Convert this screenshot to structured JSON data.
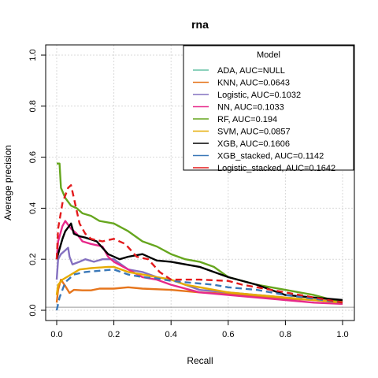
{
  "chart_data": {
    "type": "line",
    "title": "rna",
    "xlabel": "Recall",
    "ylabel": "Average precision",
    "xlim": [
      0,
      1
    ],
    "ylim": [
      0,
      1
    ],
    "x_ticks": [
      "0.0",
      "0.2",
      "0.4",
      "0.6",
      "0.8",
      "1.0"
    ],
    "y_ticks": [
      "0.0",
      "0.2",
      "0.4",
      "0.6",
      "0.8",
      "1.0"
    ],
    "grid": true,
    "baseline": 0.012,
    "legend": {
      "title": "Model",
      "position": "top-right"
    },
    "series": [
      {
        "name": "ADA, AUC=NULL",
        "color": "#66c2a5",
        "dashed": false,
        "points": []
      },
      {
        "name": "KNN, AUC=0.0643",
        "color": "#e6751c",
        "dashed": false,
        "points": [
          [
            0,
            0.03
          ],
          [
            0.005,
            0.08
          ],
          [
            0.015,
            0.12
          ],
          [
            0.03,
            0.095
          ],
          [
            0.045,
            0.068
          ],
          [
            0.06,
            0.08
          ],
          [
            0.09,
            0.078
          ],
          [
            0.12,
            0.078
          ],
          [
            0.15,
            0.085
          ],
          [
            0.2,
            0.085
          ],
          [
            0.25,
            0.09
          ],
          [
            0.3,
            0.085
          ],
          [
            0.4,
            0.08
          ],
          [
            0.5,
            0.07
          ],
          [
            0.6,
            0.065
          ],
          [
            0.7,
            0.055
          ],
          [
            0.8,
            0.045
          ],
          [
            0.9,
            0.04
          ],
          [
            1.0,
            0.035
          ]
        ]
      },
      {
        "name": "Logistic, AUC=0.1032",
        "color": "#8470c0",
        "dashed": false,
        "points": [
          [
            0,
            0.12
          ],
          [
            0.005,
            0.2
          ],
          [
            0.015,
            0.22
          ],
          [
            0.03,
            0.235
          ],
          [
            0.04,
            0.245
          ],
          [
            0.045,
            0.21
          ],
          [
            0.055,
            0.18
          ],
          [
            0.08,
            0.19
          ],
          [
            0.1,
            0.2
          ],
          [
            0.13,
            0.19
          ],
          [
            0.16,
            0.2
          ],
          [
            0.2,
            0.2
          ],
          [
            0.25,
            0.16
          ],
          [
            0.3,
            0.15
          ],
          [
            0.35,
            0.13
          ],
          [
            0.4,
            0.12
          ],
          [
            0.5,
            0.08
          ],
          [
            0.6,
            0.07
          ],
          [
            0.7,
            0.06
          ],
          [
            0.8,
            0.05
          ],
          [
            0.9,
            0.04
          ],
          [
            1.0,
            0.03
          ]
        ]
      },
      {
        "name": "NN, AUC=0.1033",
        "color": "#e7298a",
        "dashed": false,
        "points": [
          [
            0,
            0.2
          ],
          [
            0.005,
            0.27
          ],
          [
            0.02,
            0.33
          ],
          [
            0.03,
            0.35
          ],
          [
            0.05,
            0.32
          ],
          [
            0.07,
            0.3
          ],
          [
            0.09,
            0.27
          ],
          [
            0.12,
            0.26
          ],
          [
            0.16,
            0.25
          ],
          [
            0.18,
            0.21
          ],
          [
            0.2,
            0.19
          ],
          [
            0.25,
            0.16
          ],
          [
            0.3,
            0.13
          ],
          [
            0.35,
            0.12
          ],
          [
            0.4,
            0.1
          ],
          [
            0.5,
            0.07
          ],
          [
            0.6,
            0.06
          ],
          [
            0.7,
            0.05
          ],
          [
            0.8,
            0.04
          ],
          [
            0.9,
            0.03
          ],
          [
            1.0,
            0.025
          ]
        ]
      },
      {
        "name": "RF, AUC=0.194",
        "color": "#66a61e",
        "dashed": false,
        "points": [
          [
            0,
            0.575
          ],
          [
            0.01,
            0.575
          ],
          [
            0.015,
            0.48
          ],
          [
            0.03,
            0.44
          ],
          [
            0.05,
            0.41
          ],
          [
            0.07,
            0.4
          ],
          [
            0.09,
            0.38
          ],
          [
            0.12,
            0.37
          ],
          [
            0.15,
            0.35
          ],
          [
            0.2,
            0.34
          ],
          [
            0.25,
            0.31
          ],
          [
            0.3,
            0.27
          ],
          [
            0.35,
            0.25
          ],
          [
            0.4,
            0.22
          ],
          [
            0.45,
            0.2
          ],
          [
            0.5,
            0.19
          ],
          [
            0.55,
            0.17
          ],
          [
            0.6,
            0.13
          ],
          [
            0.7,
            0.1
          ],
          [
            0.8,
            0.08
          ],
          [
            0.9,
            0.06
          ],
          [
            1.0,
            0.03
          ]
        ]
      },
      {
        "name": "SVM, AUC=0.0857",
        "color": "#e6ab02",
        "dashed": false,
        "points": [
          [
            0,
            0.06
          ],
          [
            0.005,
            0.1
          ],
          [
            0.02,
            0.12
          ],
          [
            0.05,
            0.14
          ],
          [
            0.08,
            0.16
          ],
          [
            0.12,
            0.165
          ],
          [
            0.18,
            0.17
          ],
          [
            0.2,
            0.17
          ],
          [
            0.25,
            0.15
          ],
          [
            0.3,
            0.14
          ],
          [
            0.35,
            0.13
          ],
          [
            0.4,
            0.12
          ],
          [
            0.45,
            0.1
          ],
          [
            0.5,
            0.09
          ],
          [
            0.6,
            0.07
          ],
          [
            0.7,
            0.06
          ],
          [
            0.8,
            0.05
          ],
          [
            0.9,
            0.04
          ],
          [
            1.0,
            0.03
          ]
        ]
      },
      {
        "name": "XGB, AUC=0.1606",
        "color": "#000000",
        "dashed": false,
        "points": [
          [
            0,
            0.2
          ],
          [
            0.01,
            0.24
          ],
          [
            0.02,
            0.28
          ],
          [
            0.03,
            0.31
          ],
          [
            0.05,
            0.34
          ],
          [
            0.06,
            0.3
          ],
          [
            0.08,
            0.29
          ],
          [
            0.1,
            0.285
          ],
          [
            0.14,
            0.27
          ],
          [
            0.18,
            0.22
          ],
          [
            0.22,
            0.2
          ],
          [
            0.25,
            0.21
          ],
          [
            0.3,
            0.22
          ],
          [
            0.35,
            0.195
          ],
          [
            0.4,
            0.19
          ],
          [
            0.45,
            0.18
          ],
          [
            0.5,
            0.17
          ],
          [
            0.55,
            0.15
          ],
          [
            0.6,
            0.13
          ],
          [
            0.7,
            0.1
          ],
          [
            0.8,
            0.06
          ],
          [
            0.9,
            0.05
          ],
          [
            1.0,
            0.04
          ]
        ]
      },
      {
        "name": "XGB_stacked, AUC=0.1142",
        "color": "#3a78b8",
        "dashed": true,
        "points": [
          [
            0,
            0.0
          ],
          [
            0.01,
            0.05
          ],
          [
            0.03,
            0.11
          ],
          [
            0.06,
            0.14
          ],
          [
            0.1,
            0.15
          ],
          [
            0.15,
            0.155
          ],
          [
            0.2,
            0.16
          ],
          [
            0.25,
            0.14
          ],
          [
            0.3,
            0.13
          ],
          [
            0.35,
            0.125
          ],
          [
            0.4,
            0.115
          ],
          [
            0.45,
            0.11
          ],
          [
            0.5,
            0.105
          ],
          [
            0.55,
            0.1
          ],
          [
            0.6,
            0.09
          ],
          [
            0.7,
            0.08
          ],
          [
            0.8,
            0.06
          ],
          [
            0.9,
            0.045
          ],
          [
            1.0,
            0.03
          ]
        ]
      },
      {
        "name": "Logistic_stacked, AUC=0.1642",
        "color": "#e31a1c",
        "dashed": true,
        "points": [
          [
            0,
            0.2
          ],
          [
            0.005,
            0.32
          ],
          [
            0.02,
            0.42
          ],
          [
            0.04,
            0.48
          ],
          [
            0.05,
            0.49
          ],
          [
            0.06,
            0.44
          ],
          [
            0.08,
            0.34
          ],
          [
            0.1,
            0.3
          ],
          [
            0.12,
            0.28
          ],
          [
            0.16,
            0.27
          ],
          [
            0.2,
            0.28
          ],
          [
            0.24,
            0.26
          ],
          [
            0.28,
            0.21
          ],
          [
            0.32,
            0.2
          ],
          [
            0.36,
            0.15
          ],
          [
            0.4,
            0.12
          ],
          [
            0.5,
            0.12
          ],
          [
            0.6,
            0.115
          ],
          [
            0.65,
            0.1
          ],
          [
            0.7,
            0.09
          ],
          [
            0.8,
            0.07
          ],
          [
            0.9,
            0.05
          ],
          [
            1.0,
            0.03
          ]
        ]
      }
    ]
  }
}
